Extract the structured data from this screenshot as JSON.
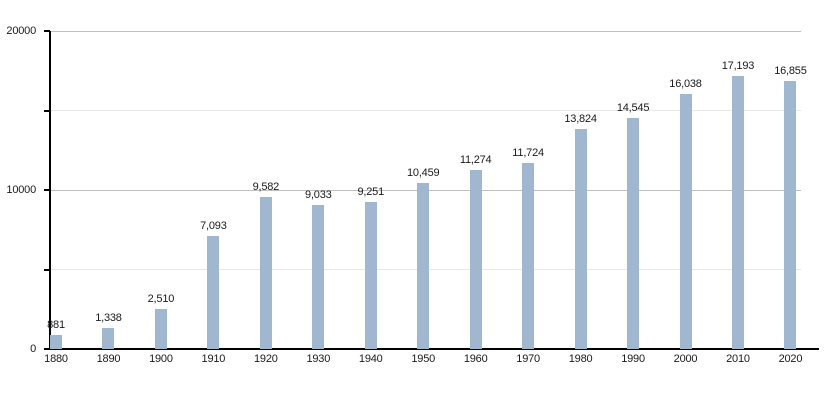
{
  "chart_data": {
    "type": "bar",
    "title": "",
    "xlabel": "",
    "ylabel": "",
    "categories": [
      "1880",
      "1890",
      "1900",
      "1910",
      "1920",
      "1930",
      "1940",
      "1950",
      "1960",
      "1970",
      "1980",
      "1990",
      "2000",
      "2010",
      "2020"
    ],
    "values": [
      881,
      1338,
      2510,
      7093,
      9582,
      9033,
      9251,
      10459,
      11274,
      11724,
      13824,
      14545,
      16038,
      17193,
      16855
    ],
    "value_labels": [
      "881",
      "1,338",
      "2,510",
      "7,093",
      "9,582",
      "9,033",
      "9,251",
      "10,459",
      "11,274",
      "11,724",
      "13,824",
      "14,545",
      "16,038",
      "17,193",
      "16,855"
    ],
    "ylim": [
      0,
      20000
    ],
    "grid": true,
    "legend": "none",
    "y_axis": {
      "ticks": [
        {
          "value": 20000,
          "label": "20000",
          "major": true
        },
        {
          "value": 15000,
          "label": "",
          "major": false
        },
        {
          "value": 10000,
          "label": "10000",
          "major": true
        },
        {
          "value": 5000,
          "label": "",
          "major": false
        },
        {
          "value": 0,
          "label": "0",
          "major": true
        }
      ]
    },
    "colors": {
      "bar": "#a1b7cf",
      "grid_major": "#bfbfbf",
      "grid_minor": "#e8e8e8",
      "axis": "#000000",
      "text": "#1a1a1a",
      "background": "#ffffff"
    }
  }
}
